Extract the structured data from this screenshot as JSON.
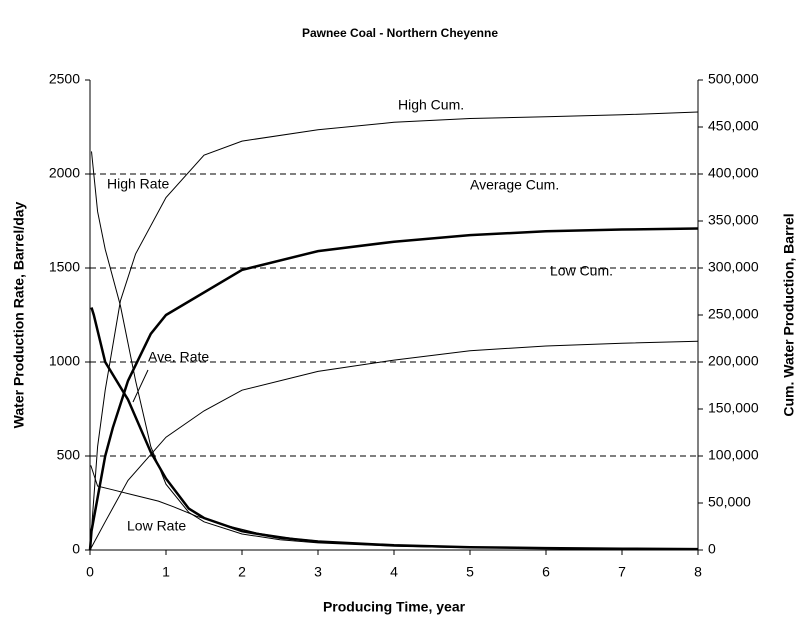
{
  "chart_data": {
    "type": "line",
    "title": "Pawnee Coal - Northern Cheyenne",
    "x_label": "Producing Time, year",
    "y_label": "Water Production Rate, Barrel/day",
    "y2_label": "Cum. Water Production, Barrel",
    "xlim": [
      0,
      8
    ],
    "xticks": [
      0,
      1,
      2,
      3,
      4,
      5,
      6,
      7,
      8
    ],
    "ylim": [
      0,
      2500
    ],
    "yticks": [
      0,
      500,
      1000,
      1500,
      2000,
      2500
    ],
    "y2lim": [
      0,
      500000
    ],
    "y2ticks": [
      {
        "value": 0,
        "label": "0"
      },
      {
        "value": 50000,
        "label": "50,000"
      },
      {
        "value": 100000,
        "label": "100,000"
      },
      {
        "value": 150000,
        "label": "150,000"
      },
      {
        "value": 200000,
        "label": "200,000"
      },
      {
        "value": 250000,
        "label": "250,000"
      },
      {
        "value": 300000,
        "label": "300,000"
      },
      {
        "value": 350000,
        "label": "350,000"
      },
      {
        "value": 400000,
        "label": "400,000"
      },
      {
        "value": 450000,
        "label": "450,000"
      },
      {
        "value": 500000,
        "label": "500,000"
      }
    ],
    "grid": true,
    "series": [
      {
        "name": "High Rate",
        "color": "#000000",
        "line_width": 1,
        "x": [
          0.02,
          0.1,
          0.2,
          0.4,
          0.6,
          0.8,
          1.0,
          1.3,
          1.5,
          2,
          2.5,
          3,
          4,
          5,
          6,
          7,
          8
        ],
        "values": [
          2120,
          1800,
          1600,
          1300,
          900,
          550,
          350,
          200,
          150,
          85,
          55,
          38,
          20,
          12,
          8,
          5,
          4
        ]
      },
      {
        "name": "Ave. Rate",
        "color": "#000000",
        "line_width": 2.5,
        "x": [
          0.02,
          0.05,
          0.2,
          0.5,
          0.8,
          1.0,
          1.3,
          1.5,
          2,
          2.5,
          3,
          4,
          5,
          6,
          7,
          8
        ],
        "values": [
          1290,
          1250,
          1000,
          800,
          520,
          380,
          220,
          170,
          100,
          65,
          45,
          25,
          15,
          10,
          7,
          5
        ]
      },
      {
        "name": "Low Rate",
        "color": "#000000",
        "line_width": 1,
        "x": [
          0.01,
          0.1,
          0.3,
          0.6,
          0.9,
          1.1,
          1.4,
          1.8,
          2.2,
          2.7,
          3.2,
          4,
          5,
          6,
          7,
          8
        ],
        "values": [
          450,
          340,
          320,
          290,
          260,
          230,
          180,
          130,
          90,
          60,
          40,
          25,
          15,
          10,
          6,
          4
        ]
      },
      {
        "name": "High Cum.",
        "color": "#000000",
        "line_width": 1,
        "axis": "y2",
        "x": [
          0,
          0.1,
          0.2,
          0.4,
          0.6,
          1,
          1.5,
          2,
          3,
          4,
          5,
          6,
          7,
          8
        ],
        "values": [
          0,
          110000,
          170000,
          265000,
          315000,
          375000,
          420000,
          435000,
          447000,
          455000,
          459000,
          461000,
          463000,
          466000
        ]
      },
      {
        "name": "Average Cum.",
        "color": "#000000",
        "line_width": 2.5,
        "axis": "y2",
        "x": [
          0,
          0.02,
          0.2,
          0.3,
          0.5,
          0.8,
          1,
          2,
          3,
          4,
          5,
          6,
          7,
          8
        ],
        "values": [
          0,
          20000,
          100000,
          130000,
          180000,
          230000,
          250000,
          298000,
          318000,
          328000,
          335000,
          339000,
          341000,
          342000
        ]
      },
      {
        "name": "Low Cum.",
        "color": "#000000",
        "line_width": 1,
        "axis": "y2",
        "x": [
          0,
          0.2,
          0.5,
          1,
          1.5,
          2,
          3,
          4,
          5,
          6,
          7,
          8
        ],
        "values": [
          0,
          30000,
          74000,
          120000,
          148000,
          170000,
          190000,
          202000,
          212000,
          217000,
          220000,
          222000
        ]
      }
    ]
  }
}
